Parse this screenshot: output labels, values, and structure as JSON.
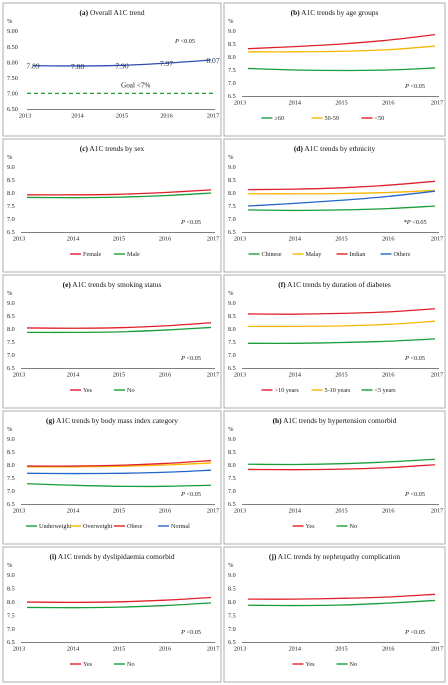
{
  "chart_data": [
    {
      "type": "line",
      "panel": "(a)",
      "title": "Overall A1C trend",
      "ylabel": "%",
      "x": [
        "2013",
        "2014",
        "2015",
        "2016",
        "2017"
      ],
      "yticks": [
        "9.00",
        "8.50",
        "8.00",
        "7.50",
        "7.00",
        "6.50"
      ],
      "ylim": [
        6.5,
        9.0
      ],
      "series": [
        {
          "name": "",
          "values": [
            7.89,
            7.88,
            7.9,
            7.97,
            8.07
          ],
          "color": "#2f4fb5"
        }
      ],
      "data_labels": [
        "7.89",
        "7.88",
        "7.90",
        "7.97",
        "8.07"
      ],
      "goal": {
        "value": 7.0,
        "label": "Goal <7%",
        "color": "#1a9e3a"
      },
      "pvalue": {
        "text": "P",
        "suffix": " <0.05"
      },
      "legend": "none"
    },
    {
      "type": "line",
      "panel": "(b)",
      "title": "A1C trends by age groups",
      "ylabel": "%",
      "x": [
        "2013",
        "2014",
        "2015",
        "2016",
        "2017"
      ],
      "yticks": [
        "9.0",
        "8.5",
        "8.0",
        "7.5",
        "7.0",
        "6.5"
      ],
      "ylim": [
        6.5,
        9.0
      ],
      "series": [
        {
          "name": "≥60",
          "values": [
            7.56,
            7.5,
            7.48,
            7.5,
            7.58
          ],
          "color": "#1a9e3a"
        },
        {
          "name": "50-59",
          "values": [
            8.2,
            8.2,
            8.22,
            8.28,
            8.42
          ],
          "color": "#f5b800"
        },
        {
          "name": "<50",
          "values": [
            8.32,
            8.4,
            8.5,
            8.65,
            8.86
          ],
          "color": "#e0202a"
        }
      ],
      "pvalue": {
        "text": "P",
        "suffix": " <0.05"
      },
      "legend": "bottom"
    },
    {
      "type": "line",
      "panel": "(c)",
      "title": "A1C trends by sex",
      "ylabel": "%",
      "x": [
        "2013",
        "2014",
        "2015",
        "2016",
        "2017"
      ],
      "yticks": [
        "9.0",
        "8.5",
        "8.0",
        "7.5",
        "7.0",
        "6.5"
      ],
      "ylim": [
        6.5,
        9.0
      ],
      "series": [
        {
          "name": "Female",
          "values": [
            7.93,
            7.93,
            7.95,
            8.02,
            8.12
          ],
          "color": "#e0202a"
        },
        {
          "name": "Male",
          "values": [
            7.83,
            7.82,
            7.84,
            7.9,
            8.0
          ],
          "color": "#1a9e3a"
        }
      ],
      "pvalue": {
        "text": "P",
        "suffix": " <0.05"
      },
      "legend": "bottom"
    },
    {
      "type": "line",
      "panel": "(d)",
      "title": "A1C trends by ethnicity",
      "ylabel": "%",
      "x": [
        "2013",
        "2014",
        "2015",
        "2016",
        "2017"
      ],
      "yticks": [
        "9.0",
        "8.5",
        "8.0",
        "7.5",
        "7.0",
        "6.5"
      ],
      "ylim": [
        6.5,
        9.0
      ],
      "series": [
        {
          "name": "Chinese",
          "values": [
            7.35,
            7.33,
            7.35,
            7.4,
            7.5
          ],
          "color": "#1a9e3a"
        },
        {
          "name": "Malay",
          "values": [
            7.97,
            7.97,
            7.98,
            8.02,
            8.1
          ],
          "color": "#f5b800"
        },
        {
          "name": "Indian",
          "values": [
            8.13,
            8.15,
            8.2,
            8.3,
            8.45
          ],
          "color": "#e0202a"
        },
        {
          "name": "Others",
          "values": [
            7.5,
            7.6,
            7.72,
            7.87,
            8.07
          ],
          "color": "#2266c9"
        }
      ],
      "pvalue": {
        "text": "*P",
        "suffix": " <0.05"
      },
      "legend": "bottom"
    },
    {
      "type": "line",
      "panel": "(e)",
      "title": "A1C trends by smoking status",
      "ylabel": "%",
      "x": [
        "2013",
        "2014",
        "2015",
        "2016",
        "2017"
      ],
      "yticks": [
        "9.0",
        "8.5",
        "8.0",
        "7.5",
        "7.0",
        "6.5"
      ],
      "ylim": [
        6.5,
        9.0
      ],
      "series": [
        {
          "name": "Yes",
          "values": [
            8.04,
            8.03,
            8.05,
            8.12,
            8.24
          ],
          "color": "#e0202a"
        },
        {
          "name": "No",
          "values": [
            7.87,
            7.87,
            7.89,
            7.96,
            8.06
          ],
          "color": "#1a9e3a"
        }
      ],
      "pvalue": {
        "text": "P",
        "suffix": " <0.05"
      },
      "legend": "bottom"
    },
    {
      "type": "line",
      "panel": "(f)",
      "title": "A1C trends by duration of diabetes",
      "ylabel": "%",
      "x": [
        "2013",
        "2014",
        "2015",
        "2016",
        "2017"
      ],
      "yticks": [
        "9.0",
        "8.5",
        "8.0",
        "7.5",
        "7.0",
        "6.5"
      ],
      "ylim": [
        6.5,
        9.0
      ],
      "series": [
        {
          "name": ">10 years",
          "values": [
            8.58,
            8.57,
            8.6,
            8.66,
            8.78
          ],
          "color": "#e0202a"
        },
        {
          "name": "5-10 years",
          "values": [
            8.1,
            8.1,
            8.12,
            8.18,
            8.3
          ],
          "color": "#f5b800"
        },
        {
          "name": "<5 years",
          "values": [
            7.45,
            7.45,
            7.48,
            7.53,
            7.62
          ],
          "color": "#1a9e3a"
        }
      ],
      "pvalue": {
        "text": "P",
        "suffix": " <0.05"
      },
      "legend": "bottom"
    },
    {
      "type": "line",
      "panel": "(g)",
      "title": "A1C trends by body mass index category",
      "ylabel": "%",
      "x": [
        "2013",
        "2014",
        "2015",
        "2016",
        "2017"
      ],
      "yticks": [
        "9.0",
        "8.5",
        "8.0",
        "7.5",
        "7.0",
        "6.5"
      ],
      "ylim": [
        6.5,
        9.0
      ],
      "series": [
        {
          "name": "Underweight",
          "values": [
            7.28,
            7.22,
            7.18,
            7.18,
            7.22
          ],
          "color": "#1a9e3a"
        },
        {
          "name": "Overweight",
          "values": [
            7.93,
            7.93,
            7.95,
            8.0,
            8.08
          ],
          "color": "#f5b800"
        },
        {
          "name": "Obese",
          "values": [
            7.96,
            7.96,
            7.99,
            8.06,
            8.17
          ],
          "color": "#e0202a"
        },
        {
          "name": "Normal",
          "values": [
            7.68,
            7.67,
            7.68,
            7.72,
            7.8
          ],
          "color": "#2266c9"
        }
      ],
      "pvalue": {
        "text": "P",
        "suffix": " <0.05"
      },
      "legend": "bottom"
    },
    {
      "type": "line",
      "panel": "(h)",
      "title": "A1C trends by hypertension comorbid",
      "ylabel": "%",
      "x": [
        "2013",
        "2014",
        "2015",
        "2016",
        "2017"
      ],
      "yticks": [
        "9.0",
        "8.5",
        "8.0",
        "7.5",
        "7.0",
        "6.5"
      ],
      "ylim": [
        6.5,
        9.0
      ],
      "series": [
        {
          "name": "Yes",
          "values": [
            7.83,
            7.82,
            7.84,
            7.9,
            8.01
          ],
          "color": "#e0202a"
        },
        {
          "name": "No",
          "values": [
            8.03,
            8.02,
            8.05,
            8.12,
            8.22
          ],
          "color": "#1a9e3a"
        }
      ],
      "pvalue": {
        "text": "P",
        "suffix": " <0.05"
      },
      "legend": "bottom"
    },
    {
      "type": "line",
      "panel": "(i)",
      "title": "A1C trends by dyslipidaemia comorbid",
      "ylabel": "%",
      "x": [
        "2013",
        "2014",
        "2015",
        "2016",
        "2017"
      ],
      "yticks": [
        "9.0",
        "8.5",
        "8.0",
        "7.5",
        "7.0",
        "6.5"
      ],
      "ylim": [
        6.5,
        9.0
      ],
      "series": [
        {
          "name": "Yes",
          "values": [
            7.99,
            7.98,
            8.0,
            8.06,
            8.16
          ],
          "color": "#e0202a"
        },
        {
          "name": "No",
          "values": [
            7.79,
            7.78,
            7.8,
            7.86,
            7.96
          ],
          "color": "#1a9e3a"
        }
      ],
      "pvalue": {
        "text": "P",
        "suffix": " <0.05"
      },
      "legend": "bottom"
    },
    {
      "type": "line",
      "panel": "(j)",
      "title": "A1C trends by nephropathy complication",
      "ylabel": "%",
      "x": [
        "2013",
        "2014",
        "2015",
        "2016",
        "2017"
      ],
      "yticks": [
        "9.0",
        "8.5",
        "8.0",
        "7.5",
        "7.0",
        "6.5"
      ],
      "ylim": [
        6.5,
        9.0
      ],
      "series": [
        {
          "name": "Yes",
          "values": [
            8.1,
            8.1,
            8.13,
            8.18,
            8.28
          ],
          "color": "#e0202a"
        },
        {
          "name": "No",
          "values": [
            7.87,
            7.86,
            7.88,
            7.95,
            8.05
          ],
          "color": "#1a9e3a"
        }
      ],
      "pvalue": {
        "text": "P",
        "suffix": " <0.05"
      },
      "legend": "bottom"
    }
  ]
}
